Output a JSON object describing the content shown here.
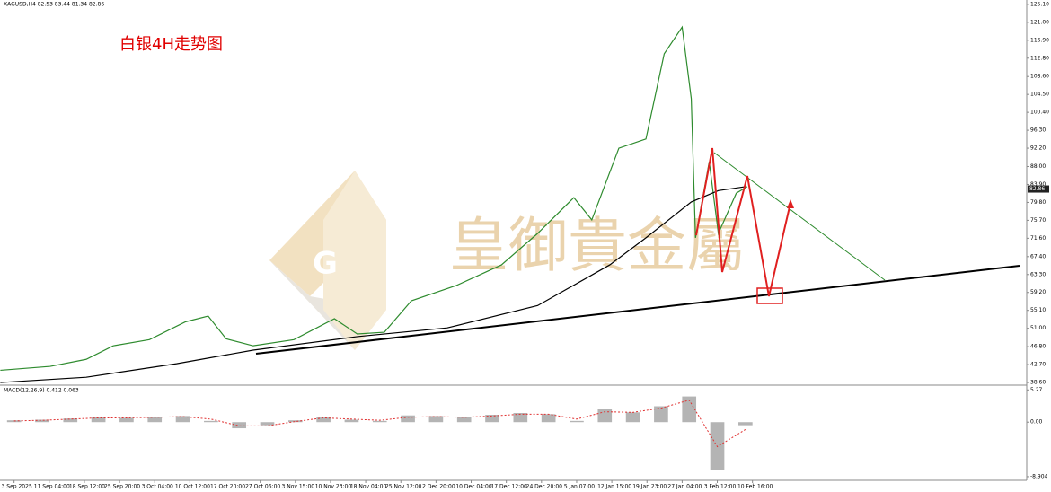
{
  "chart_data": [
    {
      "type": "line",
      "header": "XAGUSD,H4  82.53 83.44 81.34 82.86",
      "title": "白银4H走势图",
      "watermark": "皇御貴金屬",
      "categories": [
        "3 Sep 2025",
        "11 Sep 04:00",
        "18 Sep 12:00",
        "25 Sep 20:00",
        "3 Oct 04:00",
        "10 Oct 12:00",
        "17 Oct 20:00",
        "27 Oct 06:00",
        "3 Nov 15:00",
        "10 Nov 23:00",
        "18 Nov 04:00",
        "25 Nov 12:00",
        "2 Dec 20:00",
        "10 Dec 04:00",
        "17 Dec 12:00",
        "24 Dec 20:00",
        "5 Jan 07:00",
        "12 Jan 15:00",
        "19 Jan 23:00",
        "27 Jan 04:00",
        "3 Feb 12:00",
        "10 Feb 16:00"
      ],
      "xlim": [
        -0.4,
        28.8
      ],
      "ylim": [
        38.2,
        126.1
      ],
      "yticks": [
        {
          "value": 125.1,
          "label": "125.10"
        },
        {
          "value": 121,
          "label": "121.00"
        },
        {
          "value": 116.9,
          "label": "116.90"
        },
        {
          "value": 112.8,
          "label": "112.80"
        },
        {
          "value": 108.6,
          "label": "108.60"
        },
        {
          "value": 104.5,
          "label": "104.50"
        },
        {
          "value": 100.4,
          "label": "100.40"
        },
        {
          "value": 96.3,
          "label": "96.30"
        },
        {
          "value": 92.2,
          "label": "92.20"
        },
        {
          "value": 88,
          "label": "88.00"
        },
        {
          "value": 83.9,
          "label": "83.90"
        },
        {
          "value": 79.8,
          "label": "79.80"
        },
        {
          "value": 75.7,
          "label": "75.70"
        },
        {
          "value": 71.6,
          "label": "71.60"
        },
        {
          "value": 67.4,
          "label": "67.40"
        },
        {
          "value": 63.3,
          "label": "63.30"
        },
        {
          "value": 59.2,
          "label": "59.20"
        },
        {
          "value": 55.1,
          "label": "55.10"
        },
        {
          "value": 51,
          "label": "51.00"
        },
        {
          "value": 46.8,
          "label": "46.80"
        },
        {
          "value": 42.7,
          "label": "42.70"
        },
        {
          "value": 38.6,
          "label": "38.60"
        }
      ],
      "last_price": 82.86,
      "series": [
        {
          "color": "#2e8b2e",
          "x": [
            -0.39,
            1.03,
            2.05,
            2.82,
            3.85,
            4.88,
            5.52,
            6.03,
            6.8,
            7.96,
            9.11,
            9.76,
            10.53,
            11.3,
            12.58,
            13.86,
            14.89,
            15.92,
            16.43,
            17.2,
            17.97,
            18.49,
            19.0,
            19.26,
            19.38,
            19.77,
            20.03,
            20.54,
            20.85
          ],
          "values": [
            41.4,
            42.3,
            43.9,
            47.0,
            48.4,
            52.5,
            53.8,
            48.6,
            47.0,
            48.4,
            53.2,
            49.7,
            50.1,
            57.3,
            60.8,
            65.5,
            72.7,
            80.9,
            75.8,
            92.2,
            94.3,
            113.8,
            119.9,
            103.5,
            71.7,
            89.1,
            72.7,
            81.9,
            83.4
          ]
        },
        {
          "color": "#000000",
          "x": [
            -0.39,
            2.05,
            4.62,
            6.8,
            9.76,
            12.32,
            14.89,
            16.94,
            17.97,
            19.26,
            20.03,
            20.8
          ],
          "values": [
            38.6,
            39.8,
            42.9,
            46.0,
            49.1,
            51.1,
            56.2,
            65.5,
            71.7,
            79.9,
            82.5,
            83.4
          ]
        }
      ]
    },
    {
      "type": "bar",
      "label": "MACD(12,26,9) 0.412 0.063",
      "ylim": [
        -9.5,
        5.9
      ],
      "yticks": [
        5.27,
        {
          "value": 0,
          "label": "0.00"
        },
        -8.904
      ],
      "series": [
        {
          "color": "#b4b4b4",
          "x": [
            0,
            0.8,
            1.6,
            2.4,
            3.2,
            4.0,
            4.8,
            5.6,
            6.4,
            7.2,
            8.0,
            8.8,
            9.6,
            10.4,
            11.2,
            12.0,
            12.8,
            13.6,
            14.4,
            15.2,
            16.0,
            16.8,
            17.6,
            18.4,
            19.2,
            20.0,
            20.8
          ],
          "values": [
            0.3,
            0.4,
            0.6,
            0.9,
            0.7,
            0.8,
            1.0,
            0.2,
            -1.0,
            -0.5,
            0.3,
            0.9,
            0.4,
            0.2,
            1.1,
            1.0,
            0.8,
            1.2,
            1.5,
            1.3,
            0.2,
            2.1,
            1.6,
            2.6,
            4.2,
            -7.8,
            -0.5
          ]
        },
        {
          "type": "line",
          "color": "#e03030",
          "x": [
            0,
            0.8,
            1.6,
            2.4,
            3.2,
            4.0,
            4.8,
            5.6,
            6.4,
            7.2,
            8.0,
            8.8,
            9.6,
            10.4,
            11.2,
            12.0,
            12.8,
            13.6,
            14.4,
            15.2,
            16.0,
            16.8,
            17.6,
            18.4,
            19.2,
            20.0,
            20.8
          ],
          "values": [
            0.2,
            0.3,
            0.5,
            0.7,
            0.7,
            0.8,
            0.9,
            0.5,
            -0.6,
            -0.6,
            0.1,
            0.7,
            0.5,
            0.3,
            0.8,
            0.9,
            0.8,
            1.0,
            1.3,
            1.3,
            0.5,
            1.7,
            1.6,
            2.3,
            3.6,
            -4.0,
            -1.2
          ]
        }
      ]
    }
  ]
}
